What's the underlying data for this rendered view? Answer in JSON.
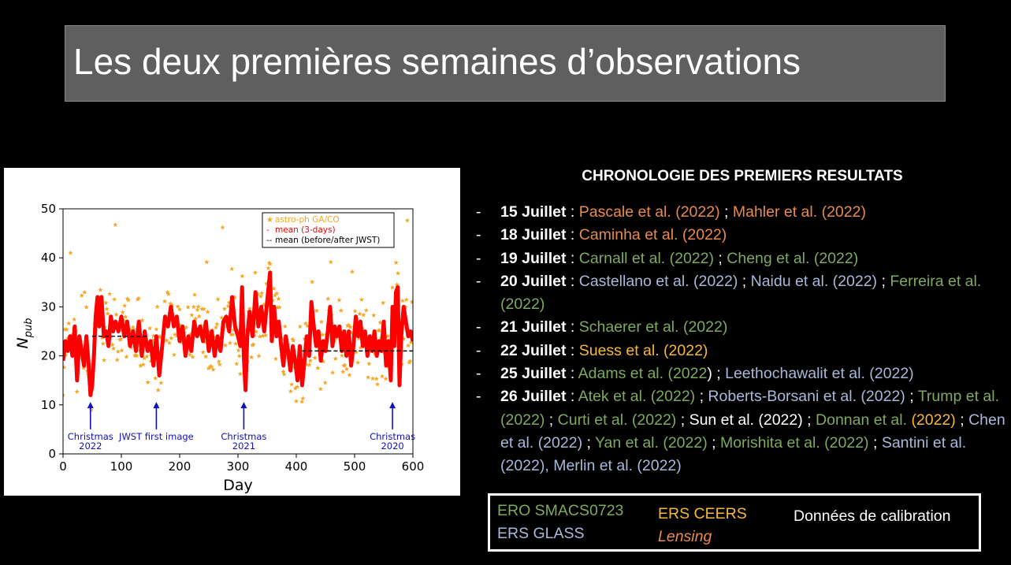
{
  "slide": {
    "title": "Les deux premières semaines d’observations"
  },
  "chronology": {
    "heading": "CHRONOLOGIE DES PREMIERS RESULTATS",
    "bullet": "-",
    "entries": [
      {
        "date": "15 Juillet",
        "refs": [
          {
            "text": ": ",
            "color": "#ffffff"
          },
          {
            "text": "Pascale et al. (2022)",
            "color": "#e98a4d"
          },
          {
            "text": " ; ",
            "color": "#ffffff"
          },
          {
            "text": "Mahler et al. (2022)",
            "color": "#e98a4d"
          }
        ]
      },
      {
        "date": "18 Juillet",
        "refs": [
          {
            "text": ": ",
            "color": "#ffffff"
          },
          {
            "text": "Caminha et al. (2022)",
            "color": "#e98a4d"
          }
        ]
      },
      {
        "date": "19 Juillet",
        "refs": [
          {
            "text": ": ",
            "color": "#ffffff"
          },
          {
            "text": "Carnall et al. (2022)",
            "color": "#7ea95e"
          },
          {
            "text": " ; ",
            "color": "#ffffff"
          },
          {
            "text": "Cheng et al. (2022)",
            "color": "#7ea95e"
          }
        ]
      },
      {
        "date": "20 Juillet",
        "refs": [
          {
            "text": ": ",
            "color": "#ffffff"
          },
          {
            "text": "Castellano et al. (2022)",
            "color": "#a9b8d9"
          },
          {
            "text": " ; ",
            "color": "#ffffff"
          },
          {
            "text": "Naidu et al. (2022)",
            "color": "#a9b8d9"
          },
          {
            "text": " ; ",
            "color": "#ffffff"
          },
          {
            "text": "Ferreira et al. (2022)",
            "color": "#7ea95e"
          }
        ]
      },
      {
        "date": "21 Juillet",
        "refs": [
          {
            "text": ": ",
            "color": "#ffffff"
          },
          {
            "text": "Schaerer et al. (2022)",
            "color": "#7ea95e"
          }
        ]
      },
      {
        "date": "22 Juillet",
        "refs": [
          {
            "text": ": ",
            "color": "#ffffff"
          },
          {
            "text": "Suess et al. (2022)",
            "color": "#f7b935"
          }
        ]
      },
      {
        "date": "25 Juillet",
        "refs": [
          {
            "text": ": ",
            "color": "#ffffff"
          },
          {
            "text": "Adams et al. (2022",
            "color": "#7ea95e"
          },
          {
            "text": ") ; ",
            "color": "#ffffff"
          },
          {
            "text": "Leethochawalit et al. (2022)",
            "color": "#a9b8d9"
          }
        ]
      },
      {
        "date": "26 Juillet",
        "refs": [
          {
            "text": ": ",
            "color": "#ffffff"
          },
          {
            "text": "Atek et al. (2022)",
            "color": "#7ea95e"
          },
          {
            "text": " ; ",
            "color": "#ffffff"
          },
          {
            "text": "Roberts-Borsani et al. (2022)",
            "color": "#a9b8d9"
          },
          {
            "text": " ; ",
            "color": "#ffffff"
          },
          {
            "text": "Trump et al. (2022)",
            "color": "#7ea95e"
          },
          {
            "text": " ; ",
            "color": "#ffffff"
          },
          {
            "text": "Curti et al. (2022)",
            "color": "#7ea95e"
          },
          {
            "text": " ; ",
            "color": "#ffffff"
          },
          {
            "text": "Sun et al. (2022)",
            "color": "#ffffff"
          },
          {
            "text": " ; ",
            "color": "#ffffff"
          },
          {
            "text": "Donnan et al. ",
            "color": "#7ea95e"
          },
          {
            "text": "(2022)",
            "color": "#f7b935"
          },
          {
            "text": " ; ",
            "color": "#ffffff"
          },
          {
            "text": "Chen et al. (2022)",
            "color": "#a9b8d9"
          },
          {
            "text": " ; ",
            "color": "#ffffff"
          },
          {
            "text": "Yan et al. (2022)",
            "color": "#7ea95e"
          },
          {
            "text": " ; ",
            "color": "#ffffff"
          },
          {
            "text": "Morishita et al. (2022)",
            "color": "#7ea95e"
          },
          {
            "text": " ; ",
            "color": "#ffffff"
          },
          {
            "text": "Santini et al. (2022), Merlin et al. (2022)",
            "color": "#a9b8d9"
          }
        ]
      }
    ]
  },
  "color_key": {
    "ero": {
      "label": "ERO SMACS0723",
      "color": "#7ea95e"
    },
    "glass": {
      "label": "ERS GLASS",
      "color": "#a9b8d9"
    },
    "ceers": {
      "label": "ERS CEERS",
      "color": "#f7b935"
    },
    "lensing": {
      "label": "Lensing",
      "color": "#e98a4d"
    },
    "calibration": {
      "label": "Données de calibration",
      "color": "#ffffff"
    }
  },
  "chart_data": {
    "type": "scatter",
    "xlabel": "Day",
    "ylabel_main": "N",
    "ylabel_sub": "pub",
    "xlim": [
      0,
      600
    ],
    "ylim": [
      0,
      50
    ],
    "xticks": [
      0,
      100,
      200,
      300,
      400,
      500,
      600
    ],
    "yticks": [
      0,
      10,
      20,
      30,
      40,
      50
    ],
    "legend": {
      "placement": "top-right",
      "entries": [
        {
          "label": "astro-ph GA/CO",
          "color": "#f5a623"
        },
        {
          "label": "mean (3-days)",
          "color": "#ff0000"
        },
        {
          "label": "mean (before/after JWST)",
          "color": "#000000"
        }
      ]
    },
    "colors": {
      "points": "#f5a623",
      "mean": "#ff0000",
      "dashed": "#000000",
      "annotations": "#1010c0"
    },
    "mean_3day": [
      [
        0,
        19
      ],
      [
        4,
        23
      ],
      [
        8,
        21
      ],
      [
        12,
        24
      ],
      [
        16,
        20
      ],
      [
        20,
        26
      ],
      [
        24,
        15
      ],
      [
        28,
        24
      ],
      [
        32,
        21
      ],
      [
        36,
        18
      ],
      [
        40,
        24
      ],
      [
        44,
        18
      ],
      [
        47,
        12
      ],
      [
        50,
        14
      ],
      [
        53,
        20
      ],
      [
        56,
        28
      ],
      [
        59,
        32
      ],
      [
        62,
        26
      ],
      [
        66,
        32
      ],
      [
        70,
        24
      ],
      [
        74,
        25
      ],
      [
        78,
        22
      ],
      [
        82,
        28
      ],
      [
        86,
        25
      ],
      [
        90,
        27
      ],
      [
        95,
        25
      ],
      [
        100,
        28
      ],
      [
        105,
        24
      ],
      [
        110,
        27
      ],
      [
        115,
        22
      ],
      [
        120,
        25
      ],
      [
        125,
        21
      ],
      [
        130,
        27
      ],
      [
        135,
        20
      ],
      [
        140,
        25
      ],
      [
        145,
        21
      ],
      [
        150,
        23
      ],
      [
        155,
        18
      ],
      [
        160,
        24
      ],
      [
        165,
        16
      ],
      [
        170,
        22
      ],
      [
        175,
        28
      ],
      [
        180,
        26
      ],
      [
        185,
        30
      ],
      [
        190,
        26
      ],
      [
        195,
        28
      ],
      [
        200,
        23
      ],
      [
        205,
        26
      ],
      [
        210,
        20
      ],
      [
        215,
        24
      ],
      [
        220,
        21
      ],
      [
        225,
        27
      ],
      [
        230,
        24
      ],
      [
        235,
        26
      ],
      [
        240,
        23
      ],
      [
        245,
        27
      ],
      [
        250,
        21
      ],
      [
        255,
        25
      ],
      [
        260,
        20
      ],
      [
        265,
        24
      ],
      [
        270,
        21
      ],
      [
        275,
        27
      ],
      [
        280,
        28
      ],
      [
        285,
        25
      ],
      [
        290,
        32
      ],
      [
        295,
        26
      ],
      [
        300,
        24
      ],
      [
        304,
        22
      ],
      [
        307,
        34
      ],
      [
        310,
        20
      ],
      [
        313,
        13
      ],
      [
        316,
        24
      ],
      [
        320,
        29
      ],
      [
        325,
        24
      ],
      [
        330,
        33
      ],
      [
        335,
        26
      ],
      [
        340,
        30
      ],
      [
        345,
        25
      ],
      [
        350,
        31
      ],
      [
        355,
        37
      ],
      [
        358,
        23
      ],
      [
        362,
        30
      ],
      [
        366,
        24
      ],
      [
        370,
        27
      ],
      [
        374,
        22
      ],
      [
        378,
        18
      ],
      [
        382,
        24
      ],
      [
        386,
        21
      ],
      [
        390,
        17
      ],
      [
        394,
        22
      ],
      [
        398,
        19
      ],
      [
        402,
        15
      ],
      [
        406,
        22
      ],
      [
        410,
        14
      ],
      [
        414,
        19
      ],
      [
        418,
        24
      ],
      [
        422,
        20
      ],
      [
        426,
        31
      ],
      [
        430,
        26
      ],
      [
        434,
        22
      ],
      [
        438,
        25
      ],
      [
        442,
        19
      ],
      [
        446,
        23
      ],
      [
        450,
        21
      ],
      [
        454,
        25
      ],
      [
        458,
        30
      ],
      [
        462,
        22
      ],
      [
        466,
        26
      ],
      [
        470,
        24
      ],
      [
        474,
        26
      ],
      [
        478,
        21
      ],
      [
        482,
        25
      ],
      [
        486,
        20
      ],
      [
        490,
        25
      ],
      [
        494,
        18
      ],
      [
        498,
        22
      ],
      [
        502,
        28
      ],
      [
        506,
        24
      ],
      [
        510,
        27
      ],
      [
        514,
        22
      ],
      [
        518,
        25
      ],
      [
        522,
        20
      ],
      [
        526,
        24
      ],
      [
        530,
        21
      ],
      [
        534,
        25
      ],
      [
        538,
        20
      ],
      [
        542,
        23
      ],
      [
        546,
        21
      ],
      [
        550,
        27
      ],
      [
        554,
        18
      ],
      [
        558,
        23
      ],
      [
        562,
        15
      ],
      [
        565,
        30
      ],
      [
        568,
        22
      ],
      [
        571,
        33
      ],
      [
        574,
        34
      ],
      [
        577,
        14
      ],
      [
        580,
        24
      ],
      [
        584,
        30
      ],
      [
        588,
        27
      ],
      [
        592,
        24
      ],
      [
        596,
        25
      ],
      [
        600,
        23
      ]
    ],
    "mean_before": {
      "x": [
        50,
        145
      ],
      "y": 24
    },
    "mean_after": {
      "x": [
        410,
        600
      ],
      "y": 21
    },
    "annotations": [
      {
        "x": 47,
        "lines": [
          "Christmas",
          "2022"
        ]
      },
      {
        "x": 160,
        "lines": [
          "JWST first image"
        ]
      },
      {
        "x": 310,
        "lines": [
          "Christmas",
          "2021"
        ]
      },
      {
        "x": 565,
        "lines": [
          "Christmas",
          "2020"
        ]
      }
    ]
  }
}
